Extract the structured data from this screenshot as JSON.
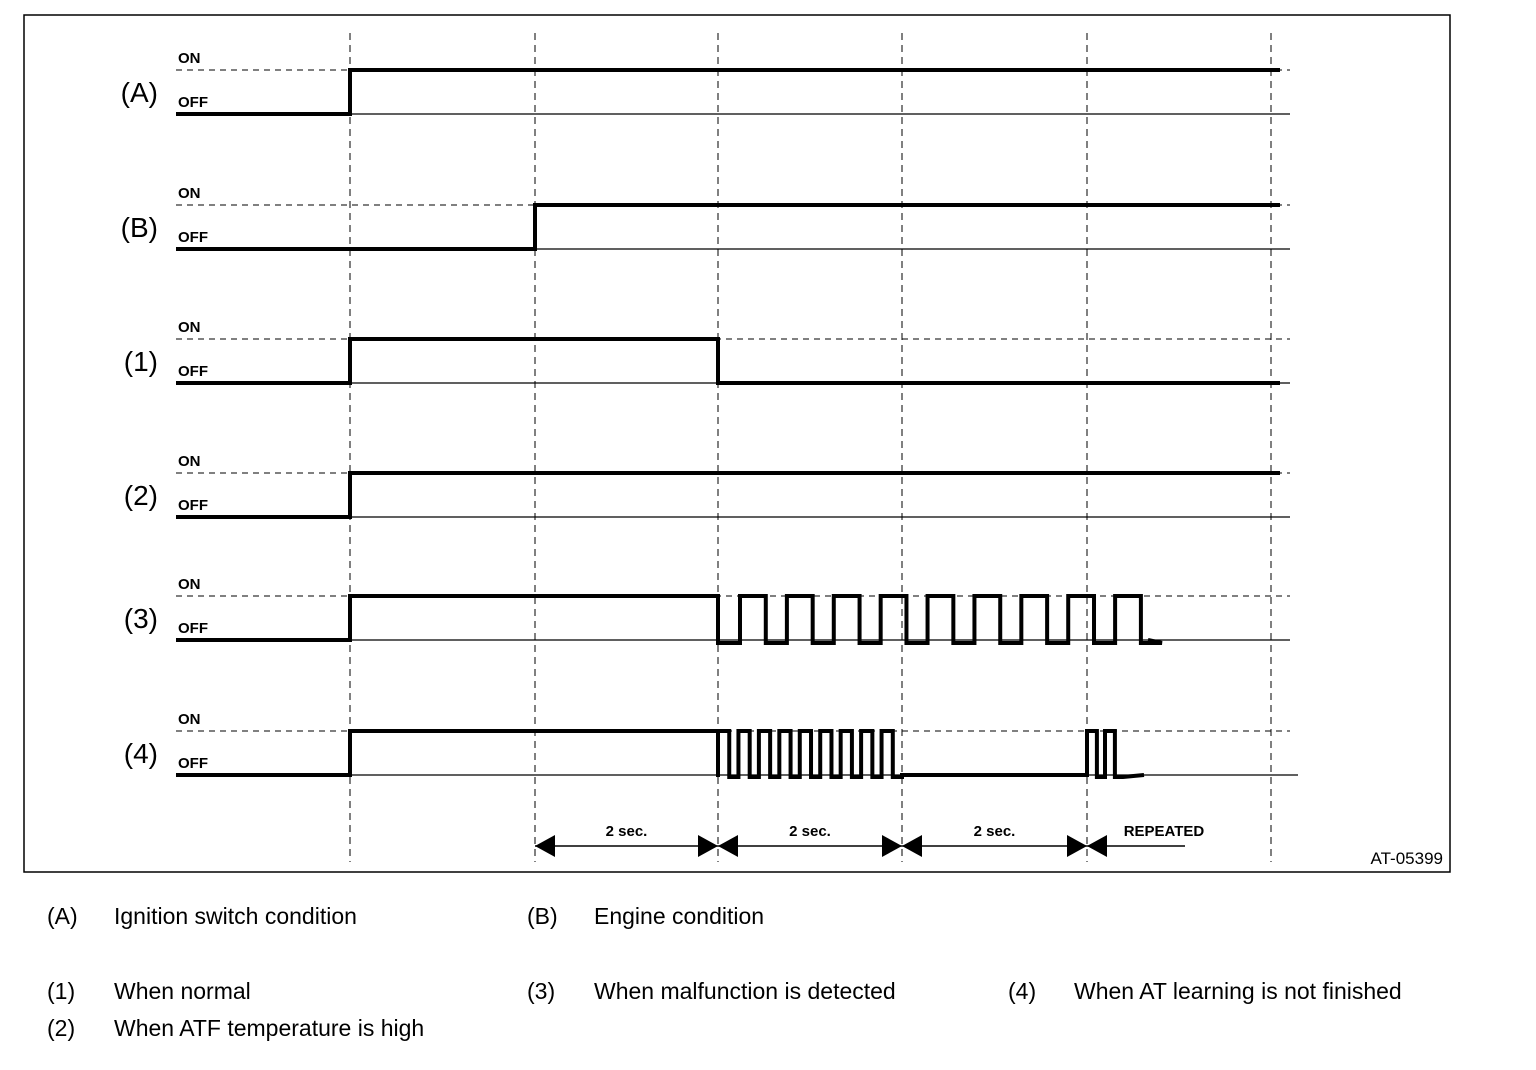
{
  "state_labels": {
    "on": "ON",
    "off": "OFF"
  },
  "rows": [
    {
      "id": "A",
      "label": "(A)",
      "kind": "step",
      "on_at": 0
    },
    {
      "id": "B",
      "label": "(B)",
      "kind": "step",
      "on_at": 1
    },
    {
      "id": "1",
      "label": "(1)",
      "kind": "pulse",
      "on_at": 0,
      "off_at": 2
    },
    {
      "id": "2",
      "label": "(2)",
      "kind": "step",
      "on_at": 0
    },
    {
      "id": "3",
      "label": "(3)",
      "kind": "blink_slow",
      "on_at": 0,
      "pulses_in_blink": 9
    },
    {
      "id": "4",
      "label": "(4)",
      "kind": "blink_code",
      "on_at": 0,
      "fast_pulses": 9,
      "repeat_pulses": 2
    }
  ],
  "intervals": [
    {
      "label": "2 sec."
    },
    {
      "label": "2 sec."
    },
    {
      "label": "2 sec."
    },
    {
      "label": "REPEATED"
    }
  ],
  "figure_id": "AT-05399",
  "legend": [
    {
      "key": "(A)",
      "text": "Ignition switch condition"
    },
    {
      "key": "(B)",
      "text": "Engine condition"
    },
    {
      "key": "(1)",
      "text": "When normal"
    },
    {
      "key": "(3)",
      "text": "When malfunction is detected"
    },
    {
      "key": "(4)",
      "text": "When AT learning is not finished"
    },
    {
      "key": "(2)",
      "text": "When ATF temperature is high"
    }
  ]
}
